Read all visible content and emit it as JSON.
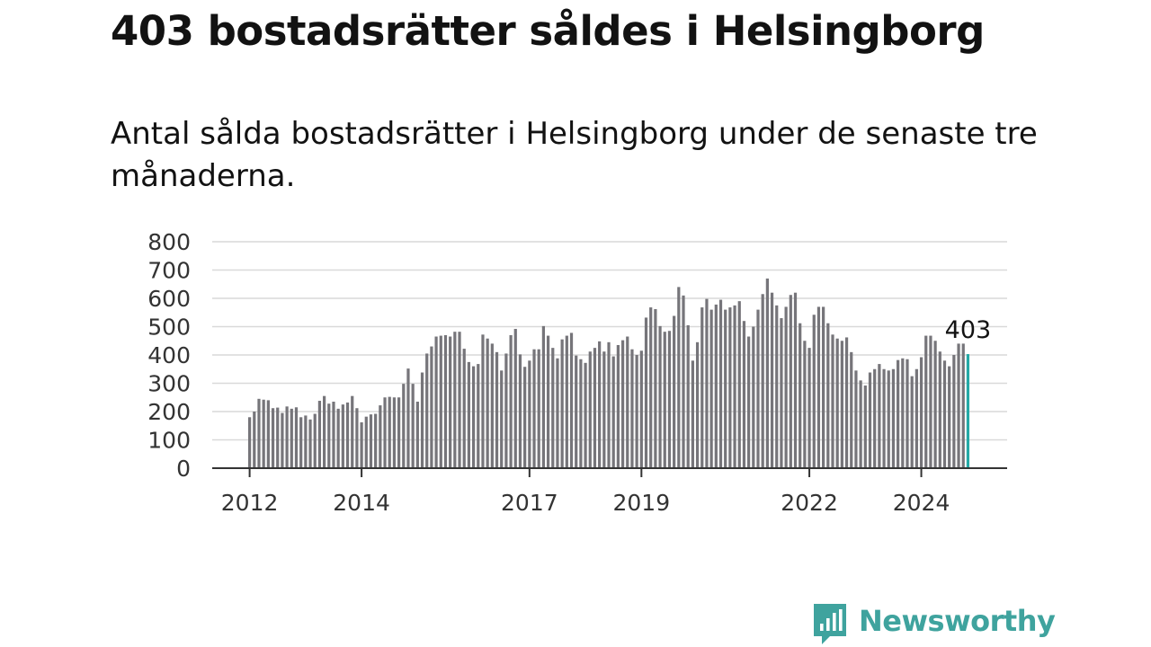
{
  "title": "403 bostadsrätter såldes i Helsingborg",
  "subtitle": "Antal sålda bostadsrätter i Helsingborg under de senaste tre månaderna.",
  "brand": {
    "name": "Newsworthy",
    "icon": "newsworthy-logo-icon",
    "color": "#3fa39e"
  },
  "chart_data": {
    "type": "bar",
    "title": "",
    "xlabel": "",
    "ylabel": "",
    "ylim": [
      0,
      800
    ],
    "y_ticks": [
      "0",
      "100",
      "200",
      "300",
      "400",
      "500",
      "600",
      "700",
      "800"
    ],
    "x_ticks": [
      "2012",
      "2014",
      "2017",
      "2019",
      "2022",
      "2024"
    ],
    "grid": true,
    "bar_color": "#76757a",
    "highlight_color": "#24a9a6",
    "highlight_label": "403",
    "series": [
      {
        "values": [
          180,
          200,
          245,
          242,
          240,
          212,
          214,
          195,
          218,
          210,
          215,
          180,
          186,
          172,
          192,
          238,
          255,
          228,
          235,
          210,
          225,
          232,
          255,
          212,
          162,
          182,
          190,
          192,
          222,
          250,
          252,
          250,
          250,
          298,
          352,
          298,
          235,
          338,
          405,
          430,
          465,
          468,
          470,
          465,
          482,
          482,
          422,
          375,
          360,
          368,
          472,
          458,
          440,
          410,
          345,
          405,
          470,
          492,
          402,
          358,
          380,
          420,
          420,
          502,
          468,
          425,
          388,
          455,
          468,
          478,
          398,
          385,
          372,
          412,
          425,
          448,
          412,
          445,
          395,
          435,
          452,
          465,
          420,
          400,
          415,
          532,
          568,
          562,
          502,
          482,
          485,
          538,
          640,
          610,
          505,
          380,
          445,
          568,
          598,
          560,
          578,
          595,
          560,
          568,
          575,
          590,
          520,
          465,
          500,
          560,
          615,
          670,
          620,
          575,
          530,
          570,
          612,
          620,
          512,
          450,
          425,
          542,
          570,
          570,
          512,
          472,
          458,
          450,
          462,
          410,
          345,
          310,
          292,
          338,
          350,
          368,
          350,
          345,
          350,
          382,
          388,
          385,
          325,
          350,
          392,
          468,
          468,
          450,
          412,
          380,
          360,
          400,
          440,
          440,
          403
        ]
      }
    ]
  }
}
